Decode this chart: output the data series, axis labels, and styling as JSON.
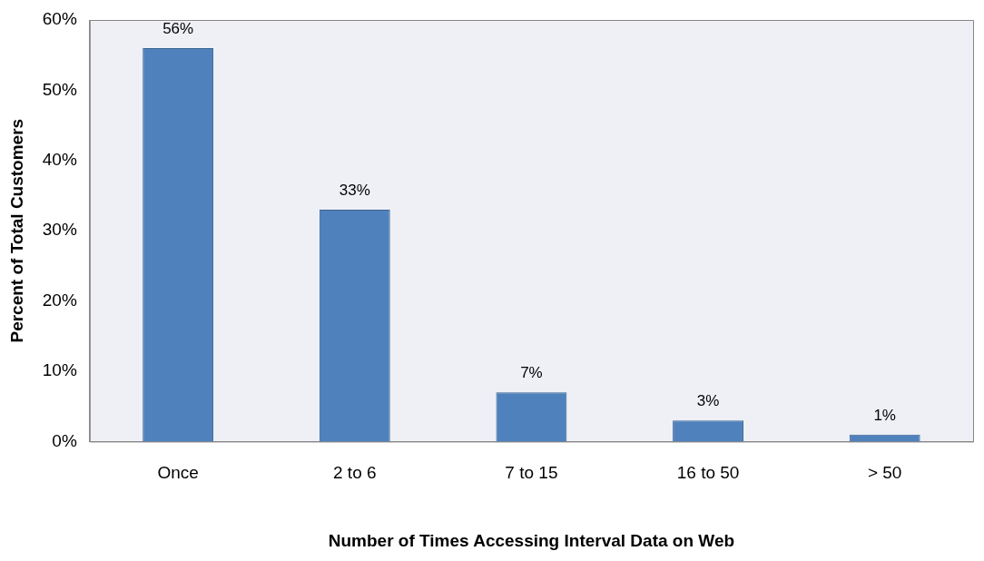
{
  "chart_data": {
    "type": "bar",
    "xlabel": "Number of Times Accessing Interval Data on Web",
    "ylabel": "Percent of Total Customers",
    "categories": [
      "Once",
      "2 to 6",
      "7 to 15",
      "16 to 50",
      "> 50"
    ],
    "values": [
      56,
      33,
      7,
      3,
      1
    ],
    "value_labels": [
      "56%",
      "33%",
      "7%",
      "3%",
      "1%"
    ],
    "color": "#4f81bd",
    "ylim": [
      0,
      60
    ],
    "yticks": [
      {
        "value": 0,
        "label": "0%"
      },
      {
        "value": 10,
        "label": "10%"
      },
      {
        "value": 20,
        "label": "20%"
      },
      {
        "value": 30,
        "label": "30%"
      },
      {
        "value": 40,
        "label": "40%"
      },
      {
        "value": 50,
        "label": "50%"
      },
      {
        "value": 60,
        "label": "60%"
      }
    ],
    "grid": false,
    "legend": false
  }
}
